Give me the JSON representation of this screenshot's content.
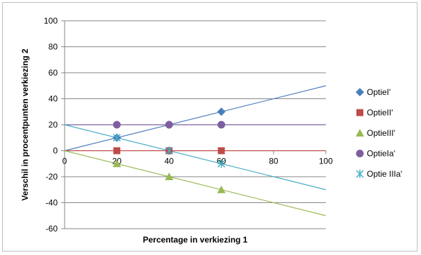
{
  "chart_data": {
    "type": "scatter",
    "xlabel": "Percentage in verkiezing 1",
    "ylabel": "Verschil in procentpunten verkiezing 2",
    "xlim": [
      0,
      100
    ],
    "ylim": [
      -60,
      100
    ],
    "xticks": [
      0,
      20,
      40,
      60,
      80,
      100
    ],
    "yticks": [
      -60,
      -40,
      -20,
      0,
      20,
      40,
      60,
      80,
      100
    ],
    "grid": "horizontal major gridlines",
    "legend_position": "right",
    "series": [
      {
        "name": "OptieI'",
        "marker": "diamond",
        "color": "#4a7ebb",
        "points": [
          {
            "x": 20,
            "y": 10
          },
          {
            "x": 40,
            "y": 20
          },
          {
            "x": 60,
            "y": 30
          }
        ],
        "trendline": {
          "x": [
            0,
            100
          ],
          "y": [
            0,
            50
          ]
        }
      },
      {
        "name": "OptieII'",
        "marker": "square",
        "color": "#be4b48",
        "points": [
          {
            "x": 20,
            "y": 0
          },
          {
            "x": 40,
            "y": 0
          },
          {
            "x": 60,
            "y": 0
          }
        ],
        "trendline": {
          "x": [
            0,
            100
          ],
          "y": [
            0,
            0
          ]
        }
      },
      {
        "name": "OptieIII'",
        "marker": "triangle",
        "color": "#98b954",
        "points": [
          {
            "x": 20,
            "y": -10
          },
          {
            "x": 40,
            "y": -20
          },
          {
            "x": 60,
            "y": -30
          }
        ],
        "trendline": {
          "x": [
            0,
            100
          ],
          "y": [
            0,
            -50
          ]
        }
      },
      {
        "name": "OptieIa'",
        "marker": "circle",
        "color": "#7d5fa0",
        "points": [
          {
            "x": 20,
            "y": 20
          },
          {
            "x": 40,
            "y": 20
          },
          {
            "x": 60,
            "y": 20
          }
        ],
        "trendline": {
          "x": [
            0,
            100
          ],
          "y": [
            20,
            20
          ]
        }
      },
      {
        "name": "Optie IIIa'",
        "marker": "star",
        "color": "#46aac5",
        "points": [
          {
            "x": 20,
            "y": 10
          },
          {
            "x": 40,
            "y": 0
          },
          {
            "x": 60,
            "y": -10
          }
        ],
        "trendline": {
          "x": [
            0,
            100
          ],
          "y": [
            20,
            -30
          ]
        }
      }
    ]
  }
}
